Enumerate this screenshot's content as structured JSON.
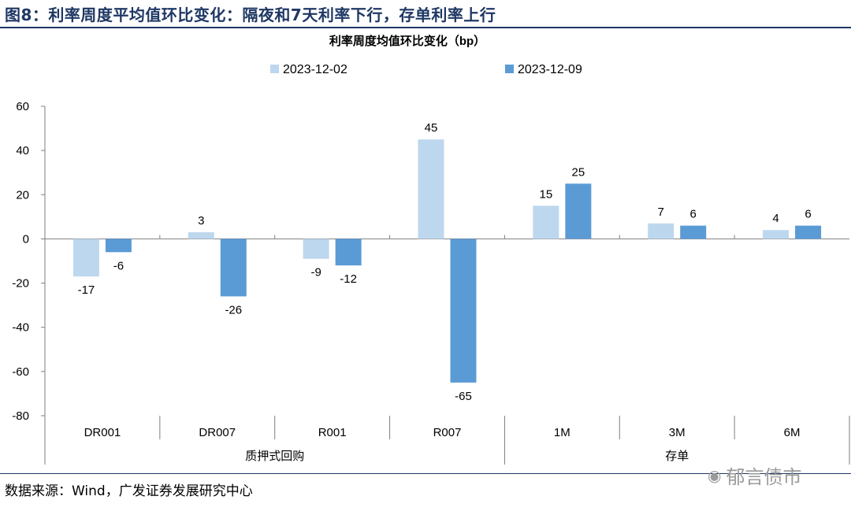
{
  "figure_title": "图8：利率周度平均值环比变化：隔夜和7天利率下行，存单利率上行",
  "source_note": "数据来源：Wind，广发证券发展研究中心",
  "watermark": "郁言债市",
  "watermark_icon": "wechat-icon",
  "colors": {
    "series1": "#bdd7ee",
    "series2": "#5b9bd5",
    "title": "#1f3864",
    "axis": "#7f7f7f"
  },
  "chart_data": {
    "type": "bar",
    "title": "利率周度均值环比变化（bp）",
    "categories": [
      "DR001",
      "DR007",
      "R001",
      "R007",
      "1M",
      "3M",
      "6M"
    ],
    "groups": [
      {
        "label": "质押式回购",
        "categories": [
          "DR001",
          "DR007",
          "R001",
          "R007"
        ]
      },
      {
        "label": "存单",
        "categories": [
          "1M",
          "3M",
          "6M"
        ]
      }
    ],
    "series": [
      {
        "name": "2023-12-02",
        "values": [
          -17,
          3,
          -9,
          45,
          15,
          7,
          4
        ]
      },
      {
        "name": "2023-12-09",
        "values": [
          -6,
          -26,
          -12,
          -65,
          25,
          6,
          6
        ]
      }
    ],
    "ylim": [
      -80,
      60
    ],
    "yticks": [
      "60",
      "40",
      "20",
      "0",
      "-20",
      "-40",
      "-60",
      "-80"
    ],
    "legend_position": "top-center",
    "grid": false
  }
}
